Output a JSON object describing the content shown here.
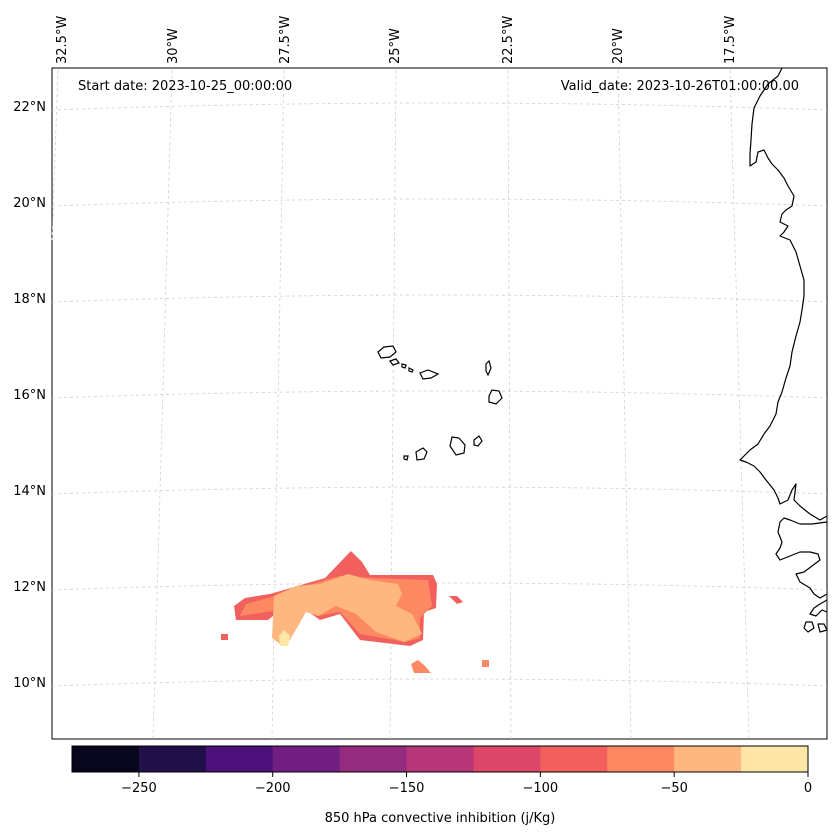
{
  "map": {
    "start_date": "Start date: 2023-10-25_00:00:00",
    "valid_date": "Valid_date: 2023-10-26T01:00:00.00",
    "lon_labels": [
      "32.5°W",
      "30°W",
      "27.5°W",
      "25°W",
      "22.5°W",
      "20°W",
      "17.5°W"
    ],
    "lat_labels": [
      "22°N",
      "20°N",
      "18°N",
      "16°N",
      "14°N",
      "12°N",
      "10°N"
    ],
    "colorbar": {
      "label": "850 hPa convective inhibition (j/Kg)",
      "ticks": [
        "−250",
        "−200",
        "−150",
        "−100",
        "−50",
        "0"
      ],
      "levels": [
        -275,
        -250,
        -225,
        -200,
        -175,
        -150,
        -125,
        -100,
        -75,
        -50,
        -25,
        0
      ],
      "colors": [
        "#07061d",
        "#1f1147",
        "#4d117b",
        "#711f81",
        "#932b7f",
        "#b7367a",
        "#db4669",
        "#f1605d",
        "#fc8961",
        "#feb77e",
        "#fde6a6"
      ]
    }
  }
}
